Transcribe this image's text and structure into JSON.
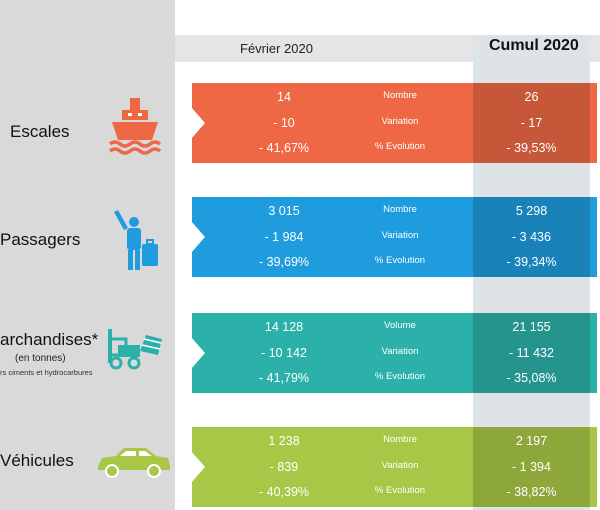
{
  "colors": {
    "escales": "#ee6845",
    "passagers": "#1e9cdd",
    "marchandises": "#2bb1a9",
    "vehicules": "#a9c746",
    "panel": "#d9d9d9",
    "cumul_column": "#dde3e7"
  },
  "headers": {
    "month": "Février 2020",
    "cumul": "Cumul 2020"
  },
  "rows": [
    {
      "label": "Escales",
      "sublabel": "",
      "note": "",
      "icon": "ship-icon",
      "metrics": [
        "Nombre",
        "Variation",
        "% Evolution"
      ],
      "feb": [
        "14",
        "- 10",
        "- 41,67%"
      ],
      "cumul": [
        "26",
        "- 17",
        "- 39,53%"
      ]
    },
    {
      "label": "Passagers",
      "sublabel": "",
      "note": "",
      "icon": "traveler-icon",
      "metrics": [
        "Nombre",
        "Variation",
        "% Evolution"
      ],
      "feb": [
        "3 015",
        "- 1 984",
        "- 39,69%"
      ],
      "cumul": [
        "5 298",
        "- 3 436",
        "- 39,34%"
      ]
    },
    {
      "label": "archandises*",
      "sublabel": "(en tonnes)",
      "note": "rs ciments et hydrocarbures",
      "icon": "forklift-icon",
      "metrics": [
        "Volume",
        "Variation",
        "% Evolution"
      ],
      "feb": [
        "14 128",
        "- 10 142",
        "- 41,79%"
      ],
      "cumul": [
        "21 155",
        "- 11 432",
        "- 35,08%"
      ]
    },
    {
      "label": "Véhicules",
      "sublabel": "",
      "note": "",
      "icon": "car-icon",
      "metrics": [
        "Nombre",
        "Variation",
        "% Evolution"
      ],
      "feb": [
        "1 238",
        "- 839",
        "- 40,39%"
      ],
      "cumul": [
        "2 197",
        "- 1 394",
        "- 38,82%"
      ]
    }
  ],
  "chart_data": {
    "type": "table",
    "columns": [
      "Février 2020",
      "Cumul 2020"
    ],
    "rows": [
      {
        "category": "Escales",
        "Nombre": [
          14,
          26
        ],
        "Variation": [
          -10,
          -17
        ],
        "% Evolution": [
          -41.67,
          -39.53
        ]
      },
      {
        "category": "Passagers",
        "Nombre": [
          3015,
          5298
        ],
        "Variation": [
          -1984,
          -3436
        ],
        "% Evolution": [
          -39.69,
          -39.34
        ]
      },
      {
        "category": "archandises*",
        "Volume": [
          14128,
          21155
        ],
        "Variation": [
          -10142,
          -11432
        ],
        "% Evolution": [
          -41.79,
          -35.08
        ]
      },
      {
        "category": "Véhicules",
        "Nombre": [
          1238,
          2197
        ],
        "Variation": [
          -839,
          -1394
        ],
        "% Evolution": [
          -40.39,
          -38.82
        ]
      }
    ]
  }
}
